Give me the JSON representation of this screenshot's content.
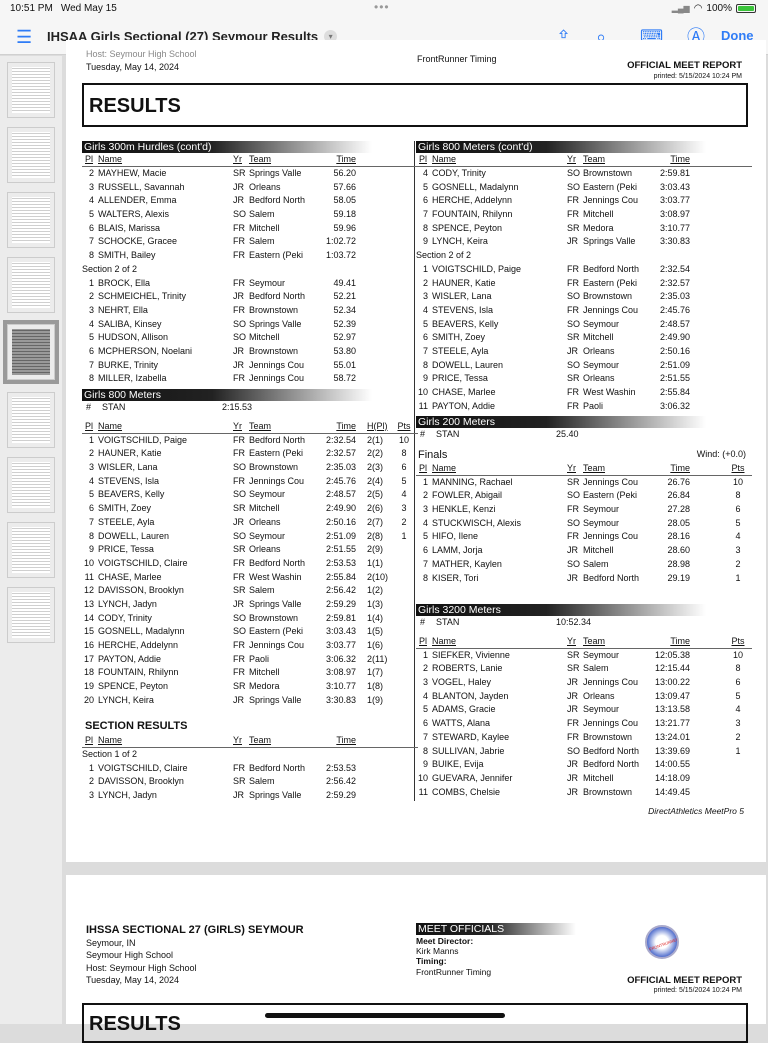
{
  "status_bar": {
    "time": "10:51 PM",
    "date": "Wed May 15",
    "battery": "100%",
    "battery_level": 1.0
  },
  "toolbar": {
    "title": "IHSAA Girls Sectional (27) Seymour Results",
    "done": "Done",
    "icons": [
      "list-icon",
      "chevron-down-icon",
      "share-icon",
      "search-icon",
      "edit-icon",
      "markup-icon"
    ]
  },
  "page1": {
    "host": "Host: Seymour High School",
    "date": "Tuesday, May 14, 2024",
    "timing": "FrontRunner Timing",
    "report": "OFFICIAL MEET REPORT",
    "printed": "printed: 5/15/2024 10:24 PM",
    "results": "RESULTS",
    "footer": "DirectAthletics MeetPro 5",
    "left": [
      {
        "title": "Girls 300m Hurdles (cont'd)",
        "header": [
          "Pl",
          "Name",
          "Yr",
          "Team",
          "Time"
        ],
        "groups": [
          {
            "label": "",
            "rows": [
              [
                "2",
                "MAYHEW, Macie",
                "SR",
                "Springs Valle",
                "56.20"
              ],
              [
                "3",
                "RUSSELL, Savannah",
                "JR",
                "Orleans",
                "57.66"
              ],
              [
                "4",
                "ALLENDER, Emma",
                "JR",
                "Bedford North",
                "58.05"
              ],
              [
                "5",
                "WALTERS, Alexis",
                "SO",
                "Salem",
                "59.18"
              ],
              [
                "6",
                "BLAIS, Marissa",
                "FR",
                "Mitchell",
                "59.96"
              ],
              [
                "7",
                "SCHOCKE, Gracee",
                "FR",
                "Salem",
                "1:02.72"
              ],
              [
                "8",
                "SMITH, Bailey",
                "FR",
                "Eastern (Peki",
                "1:03.72"
              ]
            ]
          },
          {
            "label": "Section 2 of 2",
            "rows": [
              [
                "1",
                "BROCK, Ella",
                "FR",
                "Seymour",
                "49.41"
              ],
              [
                "2",
                "SCHMEICHEL, Trinity",
                "JR",
                "Bedford North",
                "52.21"
              ],
              [
                "3",
                "NEHRT, Ella",
                "FR",
                "Brownstown",
                "52.34"
              ],
              [
                "4",
                "SALIBA, Kinsey",
                "SO",
                "Springs Valle",
                "52.39"
              ],
              [
                "5",
                "HUDSON, Allison",
                "SO",
                "Mitchell",
                "52.97"
              ],
              [
                "6",
                "MCPHERSON, Noelani",
                "JR",
                "Brownstown",
                "53.80"
              ],
              [
                "7",
                "BURKE, Trinity",
                "JR",
                "Jennings Cou",
                "55.01"
              ],
              [
                "8",
                "MILLER, Izabella",
                "FR",
                "Jennings Cou",
                "58.72"
              ]
            ]
          }
        ]
      },
      {
        "title": "Girls 800 Meters",
        "stan": [
          "#",
          "STAN",
          "2:15.53"
        ],
        "header": [
          "Pl",
          "Name",
          "Yr",
          "Team",
          "Time",
          "H(Pl)",
          "Pts"
        ],
        "groups": [
          {
            "label": "",
            "rows": [
              [
                "1",
                "VOIGTSCHILD, Paige",
                "FR",
                "Bedford North",
                "2:32.54",
                "2(1)",
                "10"
              ],
              [
                "2",
                "HAUNER, Katie",
                "FR",
                "Eastern (Peki",
                "2:32.57",
                "2(2)",
                "8"
              ],
              [
                "3",
                "WISLER, Lana",
                "SO",
                "Brownstown",
                "2:35.03",
                "2(3)",
                "6"
              ],
              [
                "4",
                "STEVENS, Isla",
                "FR",
                "Jennings Cou",
                "2:45.76",
                "2(4)",
                "5"
              ],
              [
                "5",
                "BEAVERS, Kelly",
                "SO",
                "Seymour",
                "2:48.57",
                "2(5)",
                "4"
              ],
              [
                "6",
                "SMITH, Zoey",
                "SR",
                "Mitchell",
                "2:49.90",
                "2(6)",
                "3"
              ],
              [
                "7",
                "STEELE, Ayla",
                "JR",
                "Orleans",
                "2:50.16",
                "2(7)",
                "2"
              ],
              [
                "8",
                "DOWELL, Lauren",
                "SO",
                "Seymour",
                "2:51.09",
                "2(8)",
                "1"
              ],
              [
                "9",
                "PRICE, Tessa",
                "SR",
                "Orleans",
                "2:51.55",
                "2(9)",
                ""
              ],
              [
                "10",
                "VOIGTSCHILD, Claire",
                "FR",
                "Bedford North",
                "2:53.53",
                "1(1)",
                ""
              ],
              [
                "11",
                "CHASE, Marlee",
                "FR",
                "West Washin",
                "2:55.84",
                "2(10)",
                ""
              ],
              [
                "12",
                "DAVISSON, Brooklyn",
                "SR",
                "Salem",
                "2:56.42",
                "1(2)",
                ""
              ],
              [
                "13",
                "LYNCH, Jadyn",
                "JR",
                "Springs Valle",
                "2:59.29",
                "1(3)",
                ""
              ],
              [
                "14",
                "CODY, Trinity",
                "SO",
                "Brownstown",
                "2:59.81",
                "1(4)",
                ""
              ],
              [
                "15",
                "GOSNELL, Madalynn",
                "SO",
                "Eastern (Peki",
                "3:03.43",
                "1(5)",
                ""
              ],
              [
                "16",
                "HERCHE, Addelynn",
                "FR",
                "Jennings Cou",
                "3:03.77",
                "1(6)",
                ""
              ],
              [
                "17",
                "PAYTON, Addie",
                "FR",
                "Paoli",
                "3:06.32",
                "2(11)",
                ""
              ],
              [
                "18",
                "FOUNTAIN, Rhilynn",
                "FR",
                "Mitchell",
                "3:08.97",
                "1(7)",
                ""
              ],
              [
                "19",
                "SPENCE, Peyton",
                "SR",
                "Medora",
                "3:10.77",
                "1(8)",
                ""
              ],
              [
                "20",
                "LYNCH, Keira",
                "JR",
                "Springs Valle",
                "3:30.83",
                "1(9)",
                ""
              ]
            ]
          }
        ]
      },
      {
        "subtitle": "SECTION RESULTS",
        "header": [
          "Pl",
          "Name",
          "Yr",
          "Team",
          "Time"
        ],
        "groups": [
          {
            "label": "Section 1 of 2",
            "rows": [
              [
                "1",
                "VOIGTSCHILD, Claire",
                "FR",
                "Bedford North",
                "2:53.53"
              ],
              [
                "2",
                "DAVISSON, Brooklyn",
                "SR",
                "Salem",
                "2:56.42"
              ],
              [
                "3",
                "LYNCH, Jadyn",
                "JR",
                "Springs Valle",
                "2:59.29"
              ]
            ]
          }
        ]
      }
    ],
    "right": [
      {
        "title": "Girls 800 Meters (cont'd)",
        "header": [
          "Pl",
          "Name",
          "Yr",
          "Team",
          "Time"
        ],
        "groups": [
          {
            "label": "",
            "rows": [
              [
                "4",
                "CODY, Trinity",
                "SO",
                "Brownstown",
                "2:59.81"
              ],
              [
                "5",
                "GOSNELL, Madalynn",
                "SO",
                "Eastern (Peki",
                "3:03.43"
              ],
              [
                "6",
                "HERCHE, Addelynn",
                "FR",
                "Jennings Cou",
                "3:03.77"
              ],
              [
                "7",
                "FOUNTAIN, Rhilynn",
                "FR",
                "Mitchell",
                "3:08.97"
              ],
              [
                "8",
                "SPENCE, Peyton",
                "SR",
                "Medora",
                "3:10.77"
              ],
              [
                "9",
                "LYNCH, Keira",
                "JR",
                "Springs Valle",
                "3:30.83"
              ]
            ]
          },
          {
            "label": "Section 2 of 2",
            "rows": [
              [
                "1",
                "VOIGTSCHILD, Paige",
                "FR",
                "Bedford North",
                "2:32.54"
              ],
              [
                "2",
                "HAUNER, Katie",
                "FR",
                "Eastern (Peki",
                "2:32.57"
              ],
              [
                "3",
                "WISLER, Lana",
                "SO",
                "Brownstown",
                "2:35.03"
              ],
              [
                "4",
                "STEVENS, Isla",
                "FR",
                "Jennings Cou",
                "2:45.76"
              ],
              [
                "5",
                "BEAVERS, Kelly",
                "SO",
                "Seymour",
                "2:48.57"
              ],
              [
                "6",
                "SMITH, Zoey",
                "SR",
                "Mitchell",
                "2:49.90"
              ],
              [
                "7",
                "STEELE, Ayla",
                "JR",
                "Orleans",
                "2:50.16"
              ],
              [
                "8",
                "DOWELL, Lauren",
                "SO",
                "Seymour",
                "2:51.09"
              ],
              [
                "9",
                "PRICE, Tessa",
                "SR",
                "Orleans",
                "2:51.55"
              ],
              [
                "10",
                "CHASE, Marlee",
                "FR",
                "West Washin",
                "2:55.84"
              ],
              [
                "11",
                "PAYTON, Addie",
                "FR",
                "Paoli",
                "3:06.32"
              ]
            ]
          }
        ]
      },
      {
        "title": "Girls 200 Meters",
        "stan": [
          "#",
          "STAN",
          "25.40"
        ],
        "finals": "Finals",
        "wind": "Wind:  (+0.0)",
        "header": [
          "Pl",
          "Name",
          "Yr",
          "Team",
          "Time",
          "",
          "Pts"
        ],
        "groups": [
          {
            "label": "",
            "rows": [
              [
                "1",
                "MANNING, Rachael",
                "SR",
                "Jennings Cou",
                "26.76",
                "",
                "10"
              ],
              [
                "2",
                "FOWLER, Abigail",
                "SO",
                "Eastern (Peki",
                "26.84",
                "",
                "8"
              ],
              [
                "3",
                "HENKLE, Kenzi",
                "FR",
                "Seymour",
                "27.28",
                "",
                "6"
              ],
              [
                "4",
                "STUCKWISCH, Alexis",
                "SO",
                "Seymour",
                "28.05",
                "",
                "5"
              ],
              [
                "5",
                "HIFO, Ilene",
                "FR",
                "Jennings Cou",
                "28.16",
                "",
                "4"
              ],
              [
                "6",
                "LAMM, Jorja",
                "JR",
                "Mitchell",
                "28.60",
                "",
                "3"
              ],
              [
                "7",
                "MATHER, Kaylen",
                "SO",
                "Salem",
                "28.98",
                "",
                "2"
              ],
              [
                "8",
                "KISER, Tori",
                "JR",
                "Bedford North",
                "29.19",
                "",
                "1"
              ]
            ]
          }
        ]
      },
      {
        "title": "Girls 3200 Meters",
        "stan": [
          "#",
          "STAN",
          "10:52.34"
        ],
        "header": [
          "Pl",
          "Name",
          "Yr",
          "Team",
          "Time",
          "",
          "Pts"
        ],
        "groups": [
          {
            "label": "",
            "rows": [
              [
                "1",
                "SIEFKER, Vivienne",
                "SR",
                "Seymour",
                "12:05.38",
                "",
                "10"
              ],
              [
                "2",
                "ROBERTS, Lanie",
                "SR",
                "Salem",
                "12:15.44",
                "",
                "8"
              ],
              [
                "3",
                "VOGEL, Haley",
                "JR",
                "Jennings Cou",
                "13:00.22",
                "",
                "6"
              ],
              [
                "4",
                "BLANTON, Jayden",
                "JR",
                "Orleans",
                "13:09.47",
                "",
                "5"
              ],
              [
                "5",
                "ADAMS, Gracie",
                "JR",
                "Seymour",
                "13:13.58",
                "",
                "4"
              ],
              [
                "6",
                "WATTS, Alana",
                "FR",
                "Jennings Cou",
                "13:21.77",
                "",
                "3"
              ],
              [
                "7",
                "STEWARD, Kaylee",
                "FR",
                "Brownstown",
                "13:24.01",
                "",
                "2"
              ],
              [
                "8",
                "SULLIVAN, Jabrie",
                "SO",
                "Bedford North",
                "13:39.69",
                "",
                "1"
              ],
              [
                "9",
                "BUIKE, Evija",
                "JR",
                "Bedford North",
                "14:00.55",
                "",
                ""
              ],
              [
                "10",
                "GUEVARA, Jennifer",
                "JR",
                "Mitchell",
                "14:18.09",
                "",
                ""
              ],
              [
                "11",
                "COMBS, Chelsie",
                "JR",
                "Brownstown",
                "14:49.45",
                "",
                ""
              ]
            ]
          }
        ]
      }
    ]
  },
  "page2": {
    "meet_title": "IHSSA SECTIONAL 27 (GIRLS) SEYMOUR",
    "city": "Seymour, IN",
    "venue": "Seymour High School",
    "host": "Host: Seymour High School",
    "date": "Tuesday, May 14, 2024",
    "officials_title": "MEET OFFICIALS",
    "director_label": "Meet Director:",
    "director": "Kirk Manns",
    "timing_label": "Timing:",
    "timing": "FrontRunner Timing",
    "logo_text": "FRONTRUNNER TIMING",
    "report": "OFFICIAL MEET REPORT",
    "printed": "printed: 5/15/2024 10:24 PM",
    "results": "RESULTS"
  }
}
